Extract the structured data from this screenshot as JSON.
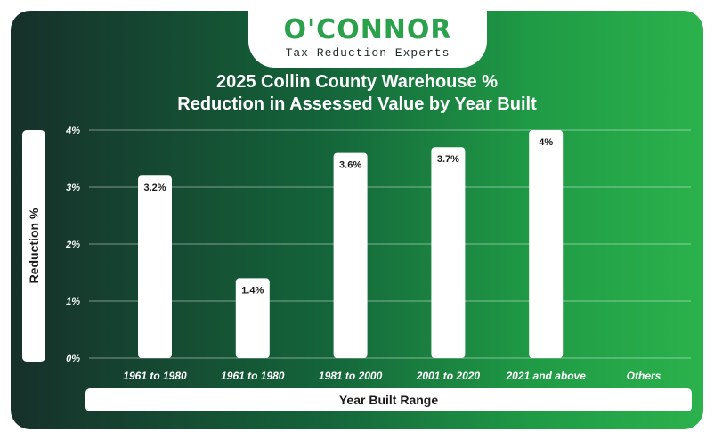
{
  "brand": {
    "name": "O'CONNOR",
    "tagline": "Tax Reduction Experts",
    "color": "#2aa14a"
  },
  "chart_data": {
    "type": "bar",
    "title_line1": "2025 Collin County Warehouse %",
    "title_line2": "Reduction in Assessed Value by Year Built",
    "xlabel": "Year Built Range",
    "ylabel": "Reduction %",
    "categories": [
      "1961 to 1980",
      "1961 to 1980",
      "1981 to 2000",
      "2001 to 2020",
      "2021 and above",
      "Others"
    ],
    "values": [
      3.2,
      1.4,
      3.6,
      3.7,
      4,
      null
    ],
    "data_labels": [
      "3.2%",
      "1.4%",
      "3.6%",
      "3.7%",
      "4%",
      ""
    ],
    "ylim": [
      0,
      4
    ],
    "yticks": [
      0,
      1,
      2,
      3,
      4
    ],
    "ytick_labels": [
      "0%",
      "1%",
      "2%",
      "3%",
      "4%"
    ],
    "grid": true,
    "bar_color": "#ffffff"
  }
}
